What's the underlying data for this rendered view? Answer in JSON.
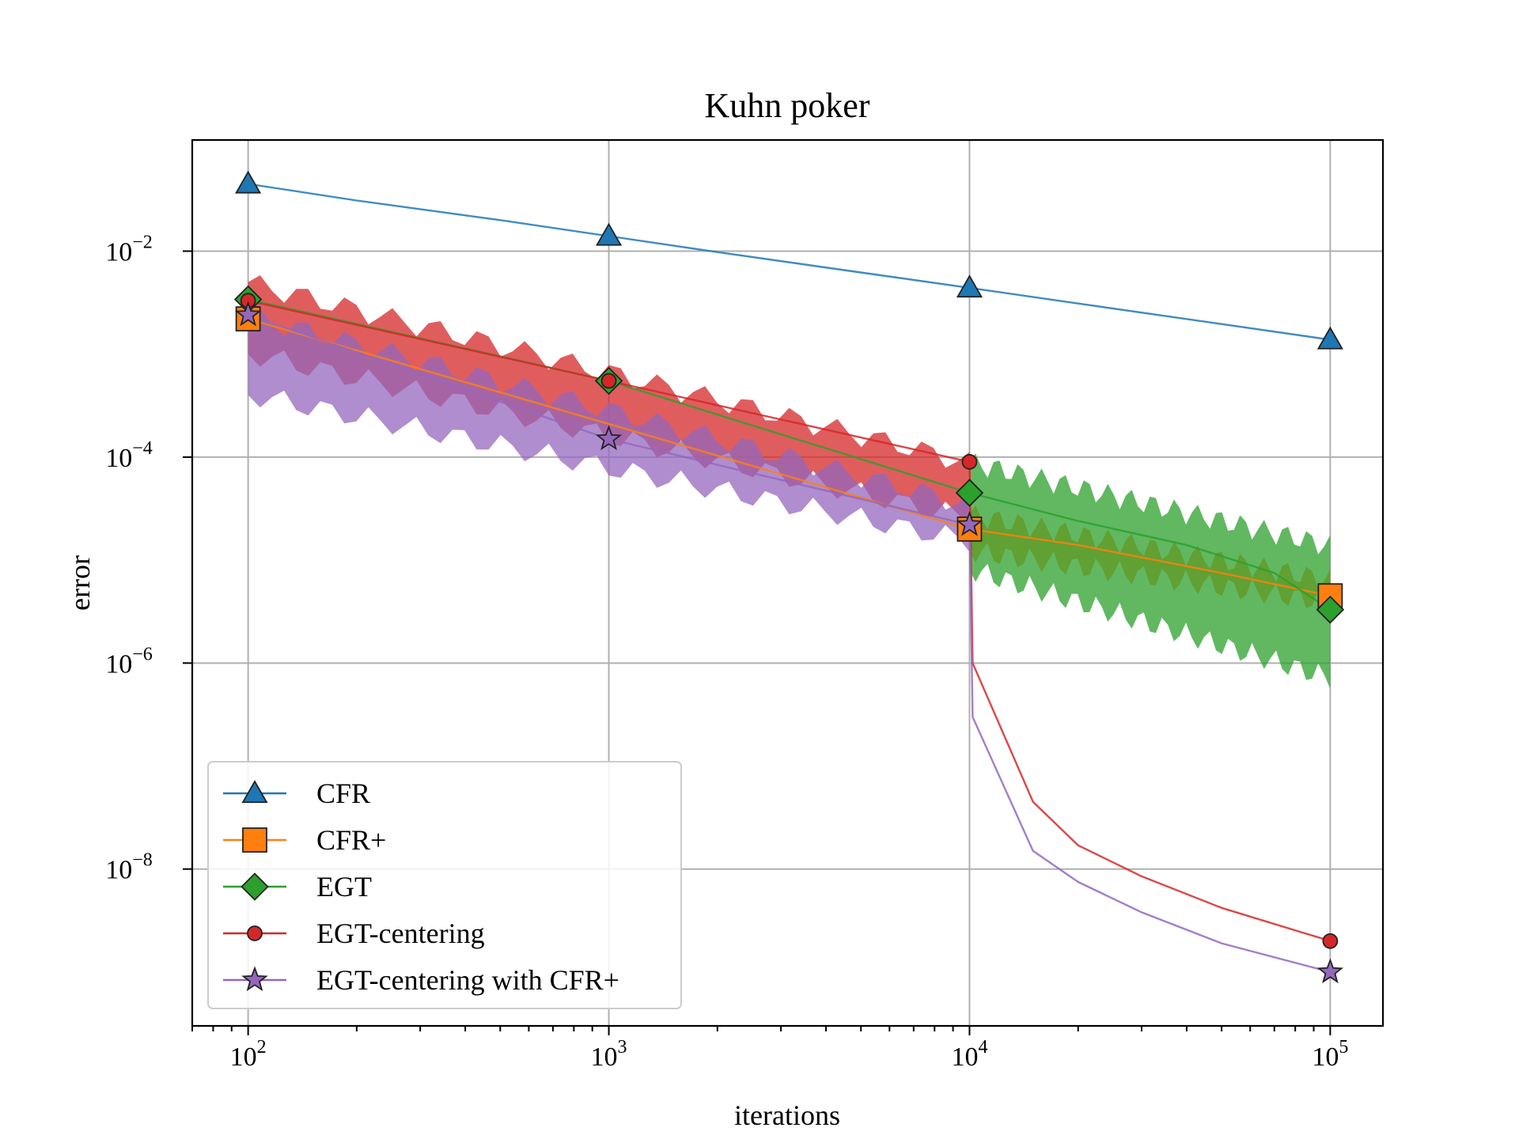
{
  "chart_data": {
    "type": "line",
    "title": "Kuhn poker",
    "xlabel": "iterations",
    "ylabel": "error",
    "xscale": "log",
    "yscale": "log",
    "xlim": [
      70,
      140000
    ],
    "ylim": [
      3e-10,
      0.12
    ],
    "xticks": [
      {
        "value": 100,
        "base": "10",
        "exp": "2"
      },
      {
        "value": 1000,
        "base": "10",
        "exp": "3"
      },
      {
        "value": 10000,
        "base": "10",
        "exp": "4"
      },
      {
        "value": 100000,
        "base": "10",
        "exp": "5"
      }
    ],
    "yticks": [
      {
        "value": 0.01,
        "base": "10",
        "exp": "−2"
      },
      {
        "value": 0.0001,
        "base": "10",
        "exp": "−4"
      },
      {
        "value": 1e-06,
        "base": "10",
        "exp": "−6"
      },
      {
        "value": 1e-08,
        "base": "10",
        "exp": "−8"
      }
    ],
    "grid": true,
    "legend_position": "lower-left",
    "series": [
      {
        "name": "CFR",
        "color": "#1f77b4",
        "marker": "triangle",
        "x": [
          100,
          200,
          500,
          1000,
          2000,
          5000,
          10000,
          20000,
          50000,
          100000
        ],
        "y": [
          0.045,
          0.031,
          0.02,
          0.014,
          0.0098,
          0.0062,
          0.0044,
          0.0031,
          0.00196,
          0.00138
        ],
        "band": null
      },
      {
        "name": "CFR+",
        "color": "#ff7f0e",
        "marker": "square",
        "x": [
          100,
          10000,
          20000,
          50000,
          100000
        ],
        "y": [
          0.0022,
          2e-05,
          1.4e-05,
          7.5e-06,
          4.5e-06
        ],
        "band": {
          "x": [
            10000,
            100000
          ],
          "lower": [
            1.2e-05,
            3.8e-06
          ],
          "upper": [
            2.8e-05,
            6.5e-06
          ]
        }
      },
      {
        "name": "EGT",
        "color": "#2ca02c",
        "marker": "diamond",
        "x": [
          100,
          1000,
          10000,
          20000,
          40000,
          70000,
          100000
        ],
        "y": [
          0.0034,
          0.00055,
          4.5e-05,
          2.4e-05,
          1.4e-05,
          7.5e-06,
          3.3e-06
        ],
        "band": {
          "x": [
            10000,
            100000
          ],
          "lower": [
            8e-06,
            7e-07
          ],
          "upper": [
            9e-05,
            1.4e-05
          ]
        }
      },
      {
        "name": "EGT-centering",
        "color": "#d62728",
        "marker": "circle",
        "x": [
          100,
          1000,
          10000,
          10200,
          15000,
          20000,
          30000,
          50000,
          100000
        ],
        "y": [
          0.0033,
          0.00055,
          9e-05,
          1e-06,
          4.5e-08,
          1.7e-08,
          8.5e-09,
          4.2e-09,
          2e-09
        ],
        "band": {
          "x": [
            100,
            10000
          ],
          "lower": [
            0.001,
            2.5e-05
          ],
          "upper": [
            0.005,
            9e-05
          ]
        }
      },
      {
        "name": "EGT-centering with CFR+",
        "color": "#9467bd",
        "marker": "star",
        "x": [
          100,
          1000,
          10000,
          10200,
          15000,
          20000,
          30000,
          50000,
          100000
        ],
        "y": [
          0.0024,
          0.00015,
          2.2e-05,
          3e-07,
          1.5e-08,
          7.5e-09,
          3.8e-09,
          1.9e-09,
          1e-09
        ],
        "band": {
          "x": [
            100,
            10000
          ],
          "lower": [
            0.0004,
            1.5e-05
          ],
          "upper": [
            0.0024,
            3.5e-05
          ]
        }
      }
    ]
  }
}
